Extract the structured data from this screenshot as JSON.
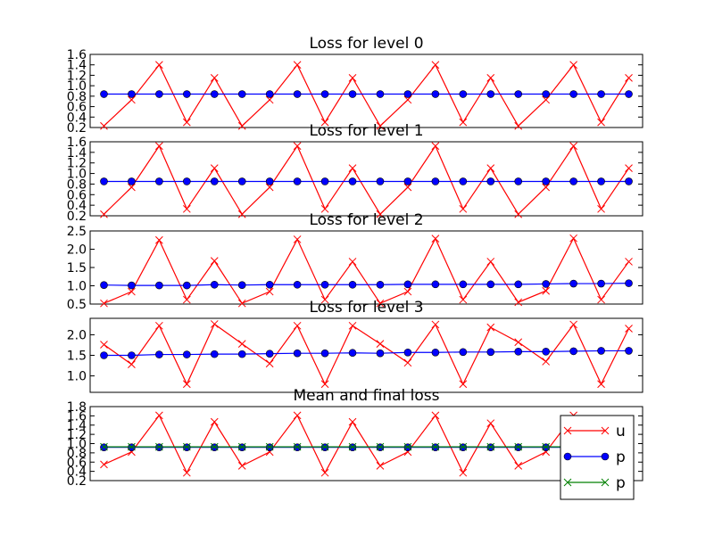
{
  "colors": {
    "u": "#ff0000",
    "p": "#0000ff",
    "final": "#008000"
  },
  "chart_data": [
    {
      "type": "line",
      "title": "Loss for level 0",
      "ylim": [
        0.2,
        1.6
      ],
      "yticks": [
        "0.2",
        "0.4",
        "0.6",
        "0.8",
        "1.0",
        "1.2",
        "1.4",
        "1.6"
      ],
      "x": [
        0,
        1,
        2,
        3,
        4,
        5,
        6,
        7,
        8,
        9,
        10,
        11,
        12,
        13,
        14,
        15,
        16,
        17,
        18,
        19
      ],
      "series": [
        {
          "name": "u",
          "marker": "x",
          "values": [
            0.23,
            0.73,
            1.4,
            0.3,
            1.15,
            0.23,
            0.73,
            1.4,
            0.3,
            1.15,
            0.23,
            0.73,
            1.4,
            0.3,
            1.15,
            0.23,
            0.73,
            1.4,
            0.3,
            1.15
          ]
        },
        {
          "name": "p",
          "marker": "o",
          "values": [
            0.84,
            0.84,
            0.84,
            0.84,
            0.84,
            0.84,
            0.84,
            0.84,
            0.84,
            0.84,
            0.84,
            0.84,
            0.84,
            0.84,
            0.84,
            0.84,
            0.84,
            0.84,
            0.84,
            0.84
          ]
        }
      ]
    },
    {
      "type": "line",
      "title": "Loss for level 1",
      "ylim": [
        0.2,
        1.6
      ],
      "yticks": [
        "0.2",
        "0.4",
        "0.6",
        "0.8",
        "1.0",
        "1.2",
        "1.4",
        "1.6"
      ],
      "x": [
        0,
        1,
        2,
        3,
        4,
        5,
        6,
        7,
        8,
        9,
        10,
        11,
        12,
        13,
        14,
        15,
        16,
        17,
        18,
        19
      ],
      "series": [
        {
          "name": "u",
          "marker": "x",
          "values": [
            0.23,
            0.74,
            1.52,
            0.33,
            1.1,
            0.23,
            0.74,
            1.52,
            0.33,
            1.1,
            0.23,
            0.74,
            1.52,
            0.33,
            1.1,
            0.23,
            0.74,
            1.52,
            0.33,
            1.1
          ]
        },
        {
          "name": "p",
          "marker": "o",
          "values": [
            0.85,
            0.85,
            0.85,
            0.85,
            0.85,
            0.85,
            0.85,
            0.85,
            0.85,
            0.85,
            0.85,
            0.85,
            0.85,
            0.85,
            0.85,
            0.85,
            0.85,
            0.85,
            0.85,
            0.85
          ]
        }
      ]
    },
    {
      "type": "line",
      "title": "Loss for level 2",
      "ylim": [
        0.5,
        2.5
      ],
      "yticks": [
        "0.5",
        "1.0",
        "1.5",
        "2.0",
        "2.5"
      ],
      "x": [
        0,
        1,
        2,
        3,
        4,
        5,
        6,
        7,
        8,
        9,
        10,
        11,
        12,
        13,
        14,
        15,
        16,
        17,
        18,
        19
      ],
      "series": [
        {
          "name": "u",
          "marker": "x",
          "values": [
            0.52,
            0.84,
            2.25,
            0.62,
            1.68,
            0.52,
            0.84,
            2.27,
            0.62,
            1.66,
            0.52,
            0.84,
            2.29,
            0.62,
            1.66,
            0.55,
            0.86,
            2.3,
            0.62,
            1.66
          ]
        },
        {
          "name": "p",
          "marker": "o",
          "values": [
            1.02,
            1.01,
            1.01,
            1.01,
            1.03,
            1.02,
            1.03,
            1.03,
            1.03,
            1.03,
            1.03,
            1.04,
            1.04,
            1.04,
            1.04,
            1.04,
            1.05,
            1.06,
            1.06,
            1.07
          ]
        }
      ]
    },
    {
      "type": "line",
      "title": "Loss for level 3",
      "ylim": [
        0.6,
        2.4
      ],
      "yticks": [
        "1.0",
        "1.5",
        "2.0"
      ],
      "ytick_values": [
        1.0,
        1.5,
        2.0
      ],
      "x": [
        0,
        1,
        2,
        3,
        4,
        5,
        6,
        7,
        8,
        9,
        10,
        11,
        12,
        13,
        14,
        15,
        16,
        17,
        18,
        19
      ],
      "series": [
        {
          "name": "u",
          "marker": "x",
          "values": [
            1.76,
            1.28,
            2.22,
            0.8,
            2.26,
            1.78,
            1.3,
            2.22,
            0.8,
            2.22,
            1.78,
            1.32,
            2.25,
            0.8,
            2.18,
            1.82,
            1.35,
            2.25,
            0.8,
            2.15
          ]
        },
        {
          "name": "p",
          "marker": "o",
          "values": [
            1.5,
            1.5,
            1.52,
            1.52,
            1.53,
            1.53,
            1.54,
            1.55,
            1.55,
            1.56,
            1.55,
            1.57,
            1.57,
            1.58,
            1.58,
            1.59,
            1.59,
            1.6,
            1.61,
            1.61
          ]
        }
      ]
    },
    {
      "type": "line",
      "title": "Mean and final loss",
      "ylim": [
        0.2,
        1.8
      ],
      "yticks": [
        "0.2",
        "0.4",
        "0.6",
        "0.8",
        "1.0",
        "1.2",
        "1.4",
        "1.6",
        "1.8"
      ],
      "legend_placement": "right",
      "x": [
        0,
        1,
        2,
        3,
        4,
        5,
        6,
        7,
        8,
        9,
        10,
        11,
        12,
        13,
        14,
        15,
        16,
        17,
        18,
        19
      ],
      "series": [
        {
          "name": "u",
          "marker": "x",
          "values": [
            0.55,
            0.82,
            1.61,
            0.37,
            1.47,
            0.52,
            0.82,
            1.61,
            0.37,
            1.47,
            0.52,
            0.82,
            1.61,
            0.37,
            1.44,
            0.52,
            0.82,
            1.61,
            0.37,
            1.44
          ]
        },
        {
          "name": "p",
          "marker": "o",
          "values": [
            0.92,
            0.92,
            0.92,
            0.92,
            0.92,
            0.92,
            0.92,
            0.92,
            0.92,
            0.92,
            0.92,
            0.92,
            0.92,
            0.92,
            0.92,
            0.92,
            0.92,
            0.92,
            0.92,
            0.92
          ]
        },
        {
          "name": "p",
          "marker": "x",
          "values": [
            0.93,
            0.93,
            0.93,
            0.93,
            0.93,
            0.93,
            0.93,
            0.93,
            0.93,
            0.93,
            0.93,
            0.93,
            0.93,
            0.93,
            0.93,
            0.93,
            0.93,
            0.93,
            0.93,
            0.93
          ]
        }
      ]
    }
  ]
}
